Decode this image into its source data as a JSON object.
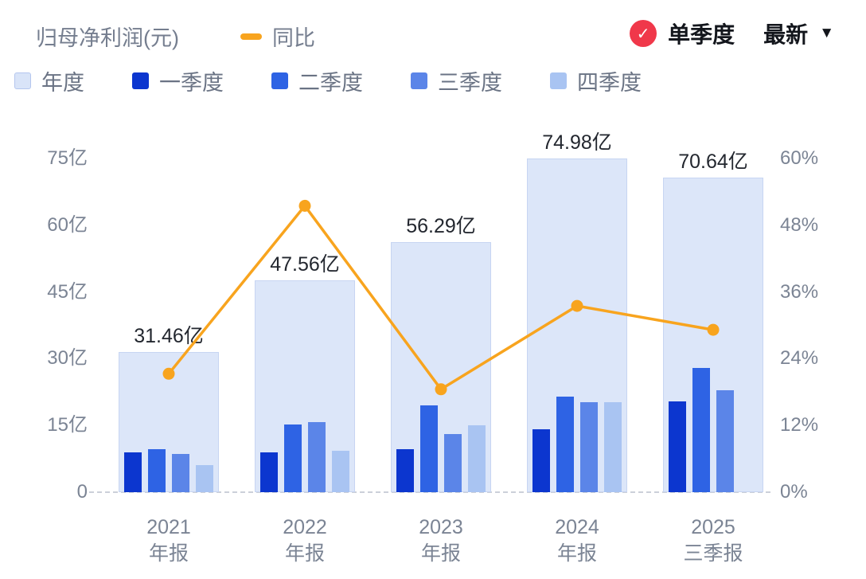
{
  "header": {
    "title": "归母净利润(元)",
    "line_legend": "同比",
    "quarter_toggle": "单季度",
    "latest": "最新",
    "check_color": "#f0384a",
    "check_glyph": "✓",
    "caret_glyph": "▼"
  },
  "legend": [
    {
      "label": "年度",
      "color": "#d9e4f8"
    },
    {
      "label": "一季度",
      "color": "#0c36cf"
    },
    {
      "label": "二季度",
      "color": "#2e63e4"
    },
    {
      "label": "三季度",
      "color": "#5b85e8"
    },
    {
      "label": "四季度",
      "color": "#a9c4f2"
    }
  ],
  "chart_data": {
    "type": "bar",
    "title": "归母净利润(元)",
    "categories": [
      [
        "2021",
        "年报"
      ],
      [
        "2022",
        "年报"
      ],
      [
        "2023",
        "年报"
      ],
      [
        "2024",
        "年报"
      ],
      [
        "2025",
        "三季报"
      ]
    ],
    "annual": {
      "name": "年度",
      "values": [
        31.46,
        47.56,
        56.29,
        74.98,
        70.64
      ],
      "labels": [
        "31.46亿",
        "47.56亿",
        "56.29亿",
        "74.98亿",
        "70.64亿"
      ],
      "color": "#dce6f9"
    },
    "quarter_series": [
      {
        "name": "一季度",
        "color": "#0c36cf",
        "values": [
          9.0,
          8.9,
          9.6,
          14.1,
          20.4
        ]
      },
      {
        "name": "二季度",
        "color": "#2e63e4",
        "values": [
          9.6,
          15.2,
          19.5,
          21.4,
          28.0
        ]
      },
      {
        "name": "三季度",
        "color": "#5b85e8",
        "values": [
          8.6,
          15.7,
          13.0,
          20.2,
          22.9
        ]
      },
      {
        "name": "四季度",
        "color": "#a9c4f2",
        "values": [
          6.1,
          9.3,
          15.0,
          20.2,
          null
        ]
      }
    ],
    "line": {
      "name": "同比",
      "color": "#f8a41e",
      "unit": "%",
      "values": [
        21.3,
        51.5,
        18.5,
        33.5,
        29.2
      ]
    },
    "left_axis": {
      "ticks": [
        "0",
        "15亿",
        "30亿",
        "45亿",
        "60亿",
        "75亿"
      ],
      "min": 0,
      "max": 75
    },
    "right_axis": {
      "ticks": [
        "0%",
        "12%",
        "24%",
        "36%",
        "48%",
        "60%"
      ],
      "min": 0,
      "max": 60
    },
    "grid": "zero-baseline-dashed-only",
    "legend_position": "top"
  }
}
